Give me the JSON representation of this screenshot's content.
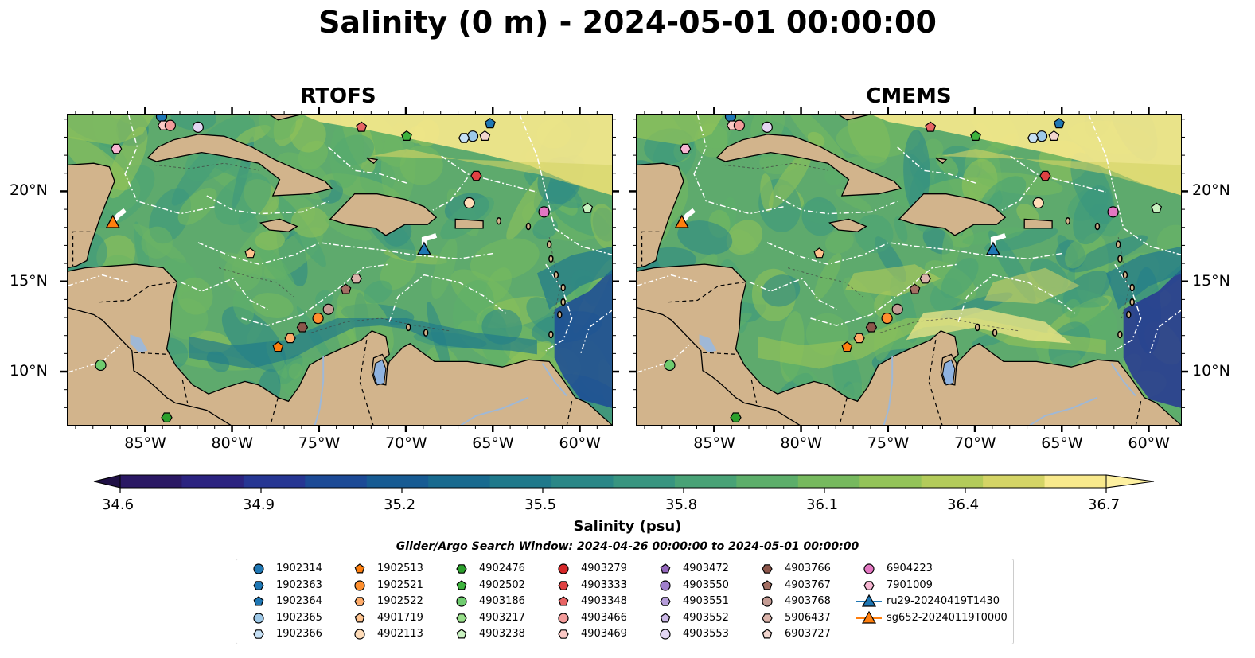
{
  "figure": {
    "title": "Salinity (0 m) - 2024-05-01 00:00:00",
    "panels": [
      {
        "id": "rtofs",
        "title": "RTOFS"
      },
      {
        "id": "cmems",
        "title": "CMEMS"
      }
    ],
    "lon_ticks": [
      "85°W",
      "80°W",
      "75°W",
      "70°W",
      "65°W",
      "60°W"
    ],
    "lat_ticks": [
      "20°N",
      "15°N",
      "10°N"
    ],
    "colorbar": {
      "label": "Salinity (psu)",
      "min": 34.6,
      "max": 36.7,
      "ticks": [
        "34.6",
        "34.9",
        "35.2",
        "35.5",
        "35.8",
        "36.1",
        "36.4",
        "36.7"
      ],
      "extend": "both",
      "colormap": "haline",
      "colors": [
        "#2a1864",
        "#2b2380",
        "#263693",
        "#1c4a96",
        "#175b93",
        "#186a8f",
        "#1f798b",
        "#2a8787",
        "#389580",
        "#48a276",
        "#5cae6a",
        "#76b95e",
        "#93c358",
        "#b3cb5a",
        "#d4d466",
        "#f8e98c"
      ]
    },
    "search_window": "Glider/Argo Search Window: 2024-04-26 00:00:00 to 2024-05-01 00:00:00"
  },
  "legend": [
    {
      "label": "1902314",
      "marker": "circle",
      "color": "#1f77b4"
    },
    {
      "label": "1902363",
      "marker": "hexagon",
      "color": "#1f77b4"
    },
    {
      "label": "1902364",
      "marker": "pentagon",
      "color": "#1f77b4"
    },
    {
      "label": "1902365",
      "marker": "circle",
      "color": "#9ec9e8"
    },
    {
      "label": "1902366",
      "marker": "hexagon",
      "color": "#c6e0f5"
    },
    {
      "label": "1902513",
      "marker": "pentagon",
      "color": "#ff7f0e"
    },
    {
      "label": "1902521",
      "marker": "circle",
      "color": "#ff8f2e"
    },
    {
      "label": "1902522",
      "marker": "hexagon",
      "color": "#ffac6a"
    },
    {
      "label": "4901719",
      "marker": "pentagon",
      "color": "#ffc48f"
    },
    {
      "label": "4902113",
      "marker": "circle",
      "color": "#ffdcb8"
    },
    {
      "label": "4902476",
      "marker": "hexagon",
      "color": "#2ca02c"
    },
    {
      "label": "4902502",
      "marker": "pentagon",
      "color": "#3db33d"
    },
    {
      "label": "4903186",
      "marker": "circle",
      "color": "#6fcc6f"
    },
    {
      "label": "4903217",
      "marker": "hexagon",
      "color": "#98df8a"
    },
    {
      "label": "4903238",
      "marker": "pentagon",
      "color": "#c9f2c0"
    },
    {
      "label": "4903279",
      "marker": "circle",
      "color": "#d62728"
    },
    {
      "label": "4903333",
      "marker": "hexagon",
      "color": "#df4142"
    },
    {
      "label": "4903348",
      "marker": "pentagon",
      "color": "#e86464"
    },
    {
      "label": "4903466",
      "marker": "circle",
      "color": "#f39c9b"
    },
    {
      "label": "4903469",
      "marker": "hexagon",
      "color": "#fbc8c5"
    },
    {
      "label": "4903472",
      "marker": "pentagon",
      "color": "#9467bd"
    },
    {
      "label": "4903550",
      "marker": "circle",
      "color": "#a07fcc"
    },
    {
      "label": "4903551",
      "marker": "hexagon",
      "color": "#b59cd9"
    },
    {
      "label": "4903552",
      "marker": "pentagon",
      "color": "#cbb8e6"
    },
    {
      "label": "4903553",
      "marker": "circle",
      "color": "#e3d6f3"
    },
    {
      "label": "4903766",
      "marker": "hexagon",
      "color": "#8c564b"
    },
    {
      "label": "4903767",
      "marker": "pentagon",
      "color": "#a36f63"
    },
    {
      "label": "4903768",
      "marker": "circle",
      "color": "#c49c94"
    },
    {
      "label": "5906437",
      "marker": "hexagon",
      "color": "#dbb4ab"
    },
    {
      "label": "6903727",
      "marker": "pentagon",
      "color": "#f2d6cf"
    },
    {
      "label": "6904223",
      "marker": "circle",
      "color": "#e377c2"
    },
    {
      "label": "7901009",
      "marker": "hexagon",
      "color": "#f7b6d2"
    },
    {
      "label": "ru29-20240419T1430",
      "marker": "triangle-line",
      "color": "#1f77b4"
    },
    {
      "label": "sg652-20240119T0000",
      "marker": "triangle-line",
      "color": "#ff7f0e"
    }
  ],
  "map_markers": [
    {
      "id": "1902314",
      "lon": -84.1,
      "lat": 24.2
    },
    {
      "id": "4903469",
      "lon": -84.0,
      "lat": 23.7
    },
    {
      "id": "4903466",
      "lon": -83.6,
      "lat": 23.7
    },
    {
      "id": "4903553",
      "lon": -82.0,
      "lat": 23.6
    },
    {
      "id": "7901009",
      "lon": -86.7,
      "lat": 22.4
    },
    {
      "id": "4903348",
      "lon": -72.6,
      "lat": 23.6
    },
    {
      "id": "4902502",
      "lon": -70.0,
      "lat": 23.1
    },
    {
      "id": "1902365",
      "lon": -66.2,
      "lat": 23.1
    },
    {
      "id": "1902366",
      "lon": -66.7,
      "lat": 23.0
    },
    {
      "id": "6903727",
      "lon": -65.5,
      "lat": 23.1
    },
    {
      "id": "1902364",
      "lon": -65.2,
      "lat": 23.8
    },
    {
      "id": "4903333",
      "lon": -66.0,
      "lat": 20.9
    },
    {
      "id": "4902113",
      "lon": -66.4,
      "lat": 19.4
    },
    {
      "id": "6904223",
      "lon": -62.1,
      "lat": 18.9
    },
    {
      "id": "4903238",
      "lon": -59.6,
      "lat": 19.1
    },
    {
      "id": "4901719",
      "lon": -79.0,
      "lat": 16.6
    },
    {
      "id": "5906437",
      "lon": -72.9,
      "lat": 15.2
    },
    {
      "id": "4903767",
      "lon": -73.5,
      "lat": 14.6
    },
    {
      "id": "4903768",
      "lon": -74.5,
      "lat": 13.5
    },
    {
      "id": "1902521",
      "lon": -75.1,
      "lat": 13.0
    },
    {
      "id": "4903766",
      "lon": -76.0,
      "lat": 12.5
    },
    {
      "id": "1902522",
      "lon": -76.7,
      "lat": 11.9
    },
    {
      "id": "1902513",
      "lon": -77.4,
      "lat": 11.4
    },
    {
      "id": "4903186",
      "lon": -87.6,
      "lat": 10.4
    },
    {
      "id": "4902476",
      "lon": -83.8,
      "lat": 7.5
    }
  ],
  "gliders": [
    {
      "id": "ru29-20240419T1430",
      "lon": -69.0,
      "lat": 16.8,
      "color": "#1f77b4"
    },
    {
      "id": "sg652-20240119T0000",
      "lon": -86.9,
      "lat": 18.3,
      "color": "#ff7f0e"
    }
  ]
}
